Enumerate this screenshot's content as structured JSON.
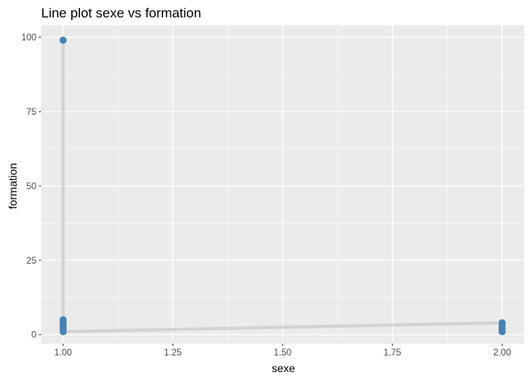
{
  "chart_data": {
    "type": "line",
    "title": "Line plot sexe vs formation",
    "xlabel": "sexe",
    "ylabel": "formation",
    "xlim": [
      0.95,
      2.05
    ],
    "ylim": [
      -3,
      104
    ],
    "x_ticks": [
      "1.00",
      "1.25",
      "1.50",
      "1.75",
      "2.00"
    ],
    "y_ticks": [
      "0",
      "25",
      "50",
      "75",
      "100"
    ],
    "x_tick_values": [
      1.0,
      1.25,
      1.5,
      1.75,
      2.0
    ],
    "y_tick_values": [
      0,
      25,
      50,
      75,
      100
    ],
    "grid": true,
    "legend": "none",
    "colors": {
      "panel": "#ebebeb",
      "grid": "#ffffff",
      "line": "#d3d3d3",
      "point": "#4682b4"
    },
    "series": [
      {
        "line_path": [
          {
            "x": 1.0,
            "y": 99
          },
          {
            "x": 1.0,
            "y": 1
          },
          {
            "x": 2.0,
            "y": 4
          }
        ],
        "points": [
          {
            "x": 1.0,
            "y": 99
          },
          {
            "x": 1.0,
            "y": 5
          },
          {
            "x": 1.0,
            "y": 4
          },
          {
            "x": 1.0,
            "y": 3
          },
          {
            "x": 1.0,
            "y": 2
          },
          {
            "x": 1.0,
            "y": 1
          },
          {
            "x": 2.0,
            "y": 4
          },
          {
            "x": 2.0,
            "y": 3
          },
          {
            "x": 2.0,
            "y": 2
          },
          {
            "x": 2.0,
            "y": 1
          }
        ]
      }
    ]
  }
}
